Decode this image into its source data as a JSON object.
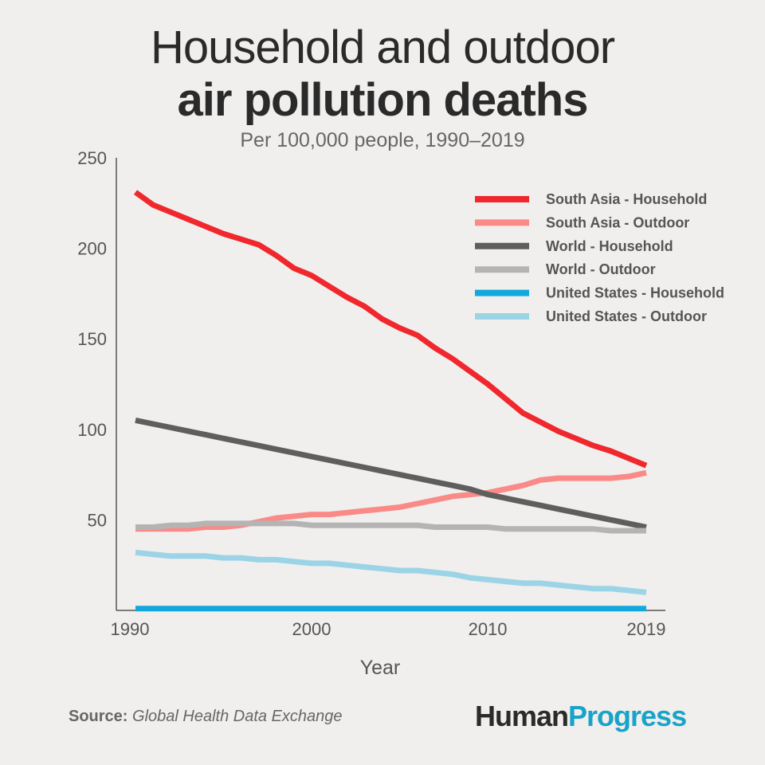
{
  "title_line1": "Household and outdoor",
  "title_line2": "air pollution deaths",
  "subtitle": "Per 100,000 people, 1990–2019",
  "source_label": "Source:",
  "source_text": "Global Health Data Exchange",
  "brand": {
    "part1": "Human",
    "part2": "Progress"
  },
  "chart_data": {
    "type": "line",
    "title": "Household and outdoor air pollution deaths",
    "subtitle": "Per 100,000 people, 1990–2019",
    "xlabel": "Year",
    "ylabel": "",
    "xlim": [
      1990,
      2019
    ],
    "ylim": [
      0,
      250
    ],
    "x_ticks": [
      1990,
      2000,
      2010,
      2019
    ],
    "y_ticks": [
      50,
      100,
      150,
      200,
      250
    ],
    "grid": false,
    "legend_position": "top-right",
    "x": [
      1990,
      1991,
      1992,
      1993,
      1994,
      1995,
      1996,
      1997,
      1998,
      1999,
      2000,
      2001,
      2002,
      2003,
      2004,
      2005,
      2006,
      2007,
      2008,
      2009,
      2010,
      2011,
      2012,
      2013,
      2014,
      2015,
      2016,
      2017,
      2018,
      2019
    ],
    "series": [
      {
        "name": "South Asia - Household",
        "color": "#f0282d",
        "values": [
          231,
          224,
          220,
          216,
          212,
          208,
          205,
          202,
          196,
          189,
          185,
          179,
          173,
          168,
          161,
          156,
          152,
          145,
          139,
          132,
          125,
          117,
          109,
          104,
          99,
          95,
          91,
          88,
          84,
          80
        ]
      },
      {
        "name": "South Asia - Outdoor",
        "color": "#fa8a88",
        "values": [
          45,
          45,
          45,
          45,
          46,
          46,
          47,
          49,
          51,
          52,
          53,
          53,
          54,
          55,
          56,
          57,
          59,
          61,
          63,
          64,
          65,
          67,
          69,
          72,
          73,
          73,
          73,
          73,
          74,
          76
        ]
      },
      {
        "name": "World - Household",
        "color": "#5e5e5e",
        "values": [
          105,
          103,
          101,
          99,
          97,
          95,
          93,
          91,
          89,
          87,
          85,
          83,
          81,
          79,
          77,
          75,
          73,
          71,
          69,
          67,
          64,
          62,
          60,
          58,
          56,
          54,
          52,
          50,
          48,
          46
        ]
      },
      {
        "name": "World - Outdoor",
        "color": "#b4b4b4",
        "values": [
          46,
          46,
          47,
          47,
          48,
          48,
          48,
          48,
          48,
          48,
          47,
          47,
          47,
          47,
          47,
          47,
          47,
          46,
          46,
          46,
          46,
          45,
          45,
          45,
          45,
          45,
          45,
          44,
          44,
          44
        ]
      },
      {
        "name": "United States - Household",
        "color": "#12a8dc",
        "values": [
          1,
          1,
          1,
          1,
          1,
          1,
          1,
          1,
          1,
          1,
          1,
          1,
          1,
          1,
          1,
          1,
          1,
          1,
          1,
          1,
          1,
          1,
          1,
          1,
          1,
          1,
          1,
          1,
          1,
          1
        ]
      },
      {
        "name": "United States - Outdoor",
        "color": "#9bd4e6",
        "values": [
          32,
          31,
          30,
          30,
          30,
          29,
          29,
          28,
          28,
          27,
          26,
          26,
          25,
          24,
          23,
          22,
          22,
          21,
          20,
          18,
          17,
          16,
          15,
          15,
          14,
          13,
          12,
          12,
          11,
          10
        ]
      }
    ]
  }
}
